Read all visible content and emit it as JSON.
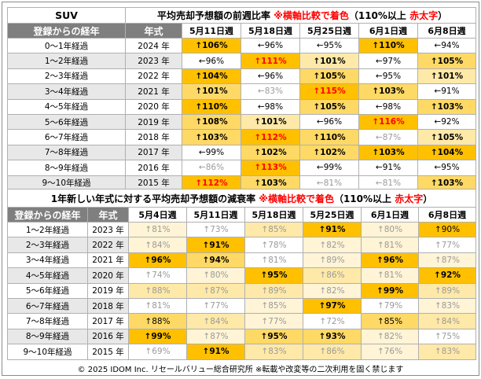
{
  "table1": {
    "label_suv": "SUV",
    "title_part1": "平均売却予想額の前週比率 ",
    "title_red": "※横軸比較で着色",
    "title_part2": "（110%以上 ",
    "title_red2": "赤太字",
    "title_part3": "）",
    "col_header_age": "登録からの経年",
    "col_header_year": "年式",
    "dates": [
      "5月11日週",
      "5月18日週",
      "5月25日週",
      "6月1日週",
      "6月8日週"
    ],
    "rows": [
      {
        "age": "0～1年経過",
        "year": "2024 年",
        "cells": [
          {
            "arrow": "↑",
            "text": "106%",
            "shade": 4,
            "red": false
          },
          {
            "arrow": "←",
            "text": "96%",
            "shade": 0,
            "red": false
          },
          {
            "arrow": "←",
            "text": "95%",
            "shade": 0,
            "red": false
          },
          {
            "arrow": "↑",
            "text": "110%",
            "shade": 4,
            "red": false
          },
          {
            "arrow": "←",
            "text": "94%",
            "shade": 0,
            "red": false
          }
        ]
      },
      {
        "age": "1～2年経過",
        "year": "2023 年",
        "cells": [
          {
            "arrow": "←",
            "text": "96%",
            "shade": 0,
            "red": false
          },
          {
            "arrow": "↑",
            "text": "111%",
            "shade": 4,
            "red": true
          },
          {
            "arrow": "↑",
            "text": "101%",
            "shade": 2,
            "red": false
          },
          {
            "arrow": "←",
            "text": "97%",
            "shade": 0,
            "red": false
          },
          {
            "arrow": "↑",
            "text": "105%",
            "shade": 3,
            "red": false
          }
        ]
      },
      {
        "age": "2～3年経過",
        "year": "2022 年",
        "cells": [
          {
            "arrow": "↑",
            "text": "104%",
            "shade": 4,
            "red": false
          },
          {
            "arrow": "←",
            "text": "96%",
            "shade": 0,
            "red": false
          },
          {
            "arrow": "↑",
            "text": "105%",
            "shade": 3,
            "red": false
          },
          {
            "arrow": "←",
            "text": "95%",
            "shade": 0,
            "red": false
          },
          {
            "arrow": "↑",
            "text": "101%",
            "shade": 2,
            "red": false
          }
        ]
      },
      {
        "age": "3～4年経過",
        "year": "2021 年",
        "cells": [
          {
            "arrow": "↑",
            "text": "101%",
            "shade": 3,
            "red": false
          },
          {
            "arrow": "←",
            "text": "83%",
            "shade": 0,
            "red": false
          },
          {
            "arrow": "↑",
            "text": "115%",
            "shade": 4,
            "red": true
          },
          {
            "arrow": "↑",
            "text": "103%",
            "shade": 3,
            "red": false
          },
          {
            "arrow": "←",
            "text": "91%",
            "shade": 0,
            "red": false
          }
        ]
      },
      {
        "age": "4～5年経過",
        "year": "2020 年",
        "cells": [
          {
            "arrow": "↑",
            "text": "110%",
            "shade": 4,
            "red": false
          },
          {
            "arrow": "←",
            "text": "98%",
            "shade": 0,
            "red": false
          },
          {
            "arrow": "↑",
            "text": "105%",
            "shade": 3,
            "red": false
          },
          {
            "arrow": "←",
            "text": "98%",
            "shade": 0,
            "red": false
          },
          {
            "arrow": "↑",
            "text": "103%",
            "shade": 3,
            "red": false
          }
        ]
      },
      {
        "age": "5～6年経過",
        "year": "2019 年",
        "cells": [
          {
            "arrow": "↑",
            "text": "108%",
            "shade": 3,
            "red": false
          },
          {
            "arrow": "↑",
            "text": "101%",
            "shade": 2,
            "red": false
          },
          {
            "arrow": "←",
            "text": "96%",
            "shade": 0,
            "red": false
          },
          {
            "arrow": "↑",
            "text": "116%",
            "shade": 4,
            "red": true
          },
          {
            "arrow": "←",
            "text": "92%",
            "shade": 0,
            "red": false
          }
        ]
      },
      {
        "age": "6～7年経過",
        "year": "2018 年",
        "cells": [
          {
            "arrow": "↑",
            "text": "103%",
            "shade": 3,
            "red": false
          },
          {
            "arrow": "↑",
            "text": "112%",
            "shade": 4,
            "red": true
          },
          {
            "arrow": "↑",
            "text": "110%",
            "shade": 3,
            "red": false
          },
          {
            "arrow": "←",
            "text": "87%",
            "shade": 0,
            "red": false
          },
          {
            "arrow": "↑",
            "text": "105%",
            "shade": 2,
            "red": false
          }
        ]
      },
      {
        "age": "7～8年経過",
        "year": "2017 年",
        "cells": [
          {
            "arrow": "←",
            "text": "99%",
            "shade": 0,
            "red": false
          },
          {
            "arrow": "↑",
            "text": "102%",
            "shade": 3,
            "red": false
          },
          {
            "arrow": "↑",
            "text": "102%",
            "shade": 3,
            "red": false
          },
          {
            "arrow": "↑",
            "text": "103%",
            "shade": 4,
            "red": false
          },
          {
            "arrow": "↑",
            "text": "104%",
            "shade": 4,
            "red": false
          }
        ]
      },
      {
        "age": "8～9年経過",
        "year": "2016 年",
        "cells": [
          {
            "arrow": "←",
            "text": "86%",
            "shade": 0,
            "red": false
          },
          {
            "arrow": "↑",
            "text": "113%",
            "shade": 4,
            "red": true
          },
          {
            "arrow": "←",
            "text": "99%",
            "shade": 0,
            "red": false
          },
          {
            "arrow": "←",
            "text": "91%",
            "shade": 0,
            "red": false
          },
          {
            "arrow": "←",
            "text": "95%",
            "shade": 0,
            "red": false
          }
        ]
      },
      {
        "age": "9～10年経過",
        "year": "2015 年",
        "cells": [
          {
            "arrow": "↑",
            "text": "112%",
            "shade": 4,
            "red": true
          },
          {
            "arrow": "↑",
            "text": "103%",
            "shade": 3,
            "red": false
          },
          {
            "arrow": "←",
            "text": "81%",
            "shade": 0,
            "red": false
          },
          {
            "arrow": "←",
            "text": "81%",
            "shade": 0,
            "red": false
          },
          {
            "arrow": "↑",
            "text": "103%",
            "shade": 3,
            "red": false
          }
        ]
      }
    ]
  },
  "table2": {
    "title_part1": "1年新しい年式に対する平均売却予想額の減衰率 ",
    "title_red": "※横軸比較で着色",
    "title_part2": "（110%以上 ",
    "title_red2": "赤太字",
    "title_part3": "）",
    "col_header_age": "登録からの経年",
    "col_header_year": "年式",
    "dates": [
      "5月4日週",
      "5月11日週",
      "5月18日週",
      "5月25日週",
      "6月1日週",
      "6月8日週"
    ],
    "rows": [
      {
        "age": "1～2年経過",
        "year": "2023 年",
        "cells": [
          {
            "arrow": "↑",
            "text": "81%",
            "shade": 1,
            "bold": false
          },
          {
            "arrow": "↑",
            "text": "73%",
            "shade": 0,
            "bold": false
          },
          {
            "arrow": "↑",
            "text": "85%",
            "shade": 2,
            "bold": false
          },
          {
            "arrow": "↑",
            "text": "91%",
            "shade": 4,
            "bold": true
          },
          {
            "arrow": "↑",
            "text": "80%",
            "shade": 1,
            "bold": false
          },
          {
            "arrow": "↑",
            "text": "90%",
            "shade": 4,
            "bold": false
          }
        ]
      },
      {
        "age": "2～3年経過",
        "year": "2022 年",
        "cells": [
          {
            "arrow": "↑",
            "text": "84%",
            "shade": 1,
            "bold": false
          },
          {
            "arrow": "↑",
            "text": "91%",
            "shade": 4,
            "bold": true
          },
          {
            "arrow": "↑",
            "text": "78%",
            "shade": 0,
            "bold": false
          },
          {
            "arrow": "↑",
            "text": "82%",
            "shade": 1,
            "bold": false
          },
          {
            "arrow": "↑",
            "text": "81%",
            "shade": 1,
            "bold": false
          },
          {
            "arrow": "↑",
            "text": "77%",
            "shade": 0,
            "bold": false
          }
        ]
      },
      {
        "age": "3～4年経過",
        "year": "2021 年",
        "cells": [
          {
            "arrow": "↑",
            "text": "96%",
            "shade": 4,
            "bold": true
          },
          {
            "arrow": "↑",
            "text": "94%",
            "shade": 3,
            "bold": true
          },
          {
            "arrow": "↑",
            "text": "81%",
            "shade": 0,
            "bold": false
          },
          {
            "arrow": "↑",
            "text": "89%",
            "shade": 1,
            "bold": false
          },
          {
            "arrow": "↑",
            "text": "96%",
            "shade": 4,
            "bold": true
          },
          {
            "arrow": "↑",
            "text": "87%",
            "shade": 1,
            "bold": false
          }
        ]
      },
      {
        "age": "4～5年経過",
        "year": "2020 年",
        "cells": [
          {
            "arrow": "↑",
            "text": "74%",
            "shade": 0,
            "bold": false
          },
          {
            "arrow": "↑",
            "text": "80%",
            "shade": 1,
            "bold": false
          },
          {
            "arrow": "↑",
            "text": "95%",
            "shade": 4,
            "bold": true
          },
          {
            "arrow": "↑",
            "text": "86%",
            "shade": 2,
            "bold": false
          },
          {
            "arrow": "↑",
            "text": "81%",
            "shade": 1,
            "bold": false
          },
          {
            "arrow": "↑",
            "text": "92%",
            "shade": 4,
            "bold": true
          }
        ]
      },
      {
        "age": "5～6年経過",
        "year": "2019 年",
        "cells": [
          {
            "arrow": "↑",
            "text": "88%",
            "shade": 2,
            "bold": false
          },
          {
            "arrow": "↑",
            "text": "87%",
            "shade": 2,
            "bold": false
          },
          {
            "arrow": "↑",
            "text": "89%",
            "shade": 2,
            "bold": false
          },
          {
            "arrow": "↑",
            "text": "82%",
            "shade": 1,
            "bold": false
          },
          {
            "arrow": "↑",
            "text": "99%",
            "shade": 4,
            "bold": true
          },
          {
            "arrow": "↑",
            "text": "89%",
            "shade": 2,
            "bold": false
          }
        ]
      },
      {
        "age": "6～7年経過",
        "year": "2018 年",
        "cells": [
          {
            "arrow": "↑",
            "text": "81%",
            "shade": 0,
            "bold": false
          },
          {
            "arrow": "↑",
            "text": "77%",
            "shade": 0,
            "bold": false
          },
          {
            "arrow": "↑",
            "text": "85%",
            "shade": 1,
            "bold": false
          },
          {
            "arrow": "↑",
            "text": "97%",
            "shade": 4,
            "bold": true
          },
          {
            "arrow": "↑",
            "text": "79%",
            "shade": 0,
            "bold": false
          },
          {
            "arrow": "↑",
            "text": "83%",
            "shade": 1,
            "bold": false
          }
        ]
      },
      {
        "age": "7～8年経過",
        "year": "2017 年",
        "cells": [
          {
            "arrow": "↑",
            "text": "88%",
            "shade": 3,
            "bold": false
          },
          {
            "arrow": "↑",
            "text": "84%",
            "shade": 2,
            "bold": false
          },
          {
            "arrow": "↑",
            "text": "77%",
            "shade": 1,
            "bold": false
          },
          {
            "arrow": "↑",
            "text": "72%",
            "shade": 0,
            "bold": false
          },
          {
            "arrow": "↑",
            "text": "85%",
            "shade": 3,
            "bold": false
          },
          {
            "arrow": "↑",
            "text": "84%",
            "shade": 2,
            "bold": false
          }
        ]
      },
      {
        "age": "8～9年経過",
        "year": "2016 年",
        "cells": [
          {
            "arrow": "↑",
            "text": "99%",
            "shade": 4,
            "bold": true
          },
          {
            "arrow": "↑",
            "text": "87%",
            "shade": 1,
            "bold": false
          },
          {
            "arrow": "↑",
            "text": "95%",
            "shade": 3,
            "bold": true
          },
          {
            "arrow": "↑",
            "text": "93%",
            "shade": 3,
            "bold": true
          },
          {
            "arrow": "↑",
            "text": "82%",
            "shade": 1,
            "bold": false
          },
          {
            "arrow": "↑",
            "text": "75%",
            "shade": 0,
            "bold": false
          }
        ]
      },
      {
        "age": "9～10年経過",
        "year": "2015 年",
        "cells": [
          {
            "arrow": "↑",
            "text": "69%",
            "shade": 0,
            "bold": false
          },
          {
            "arrow": "↑",
            "text": "91%",
            "shade": 4,
            "bold": true
          },
          {
            "arrow": "↑",
            "text": "83%",
            "shade": 2,
            "bold": false
          },
          {
            "arrow": "↑",
            "text": "86%",
            "shade": 2,
            "bold": false
          },
          {
            "arrow": "↑",
            "text": "76%",
            "shade": 1,
            "bold": false
          },
          {
            "arrow": "↑",
            "text": "83%",
            "shade": 2,
            "bold": false
          }
        ]
      }
    ]
  },
  "footer": "© 2025 IDOM Inc. リセールバリュー総合研究所 ※転載や改変等の二次利用を固く禁じます",
  "colors": {
    "shade0": "#ffffff",
    "shade1": "#fff4d6",
    "shade2": "#ffe9a8",
    "shade3": "#ffd966",
    "shade4": "#ffc000",
    "header_gray": "#7f7f7f",
    "red": "#ff0000"
  },
  "chart_data": {
    "type": "table",
    "tables": [
      {
        "title": "平均売却予想額の前週比率 ※横軸比較で着色（110%以上 赤太字）",
        "columns": [
          "登録からの経年",
          "年式",
          "5月11日週",
          "5月18日週",
          "5月25日週",
          "6月1日週",
          "6月8日週"
        ],
        "rows": [
          [
            "0～1年経過",
            "2024 年",
            106,
            96,
            95,
            110,
            94
          ],
          [
            "1～2年経過",
            "2023 年",
            96,
            111,
            101,
            97,
            105
          ],
          [
            "2～3年経過",
            "2022 年",
            104,
            96,
            105,
            95,
            101
          ],
          [
            "3～4年経過",
            "2021 年",
            101,
            83,
            115,
            103,
            91
          ],
          [
            "4～5年経過",
            "2020 年",
            110,
            98,
            105,
            98,
            103
          ],
          [
            "5～6年経過",
            "2019 年",
            108,
            101,
            96,
            116,
            92
          ],
          [
            "6～7年経過",
            "2018 年",
            103,
            112,
            110,
            87,
            105
          ],
          [
            "7～8年経過",
            "2017 年",
            99,
            102,
            102,
            103,
            104
          ],
          [
            "8～9年経過",
            "2016 年",
            86,
            113,
            99,
            91,
            95
          ],
          [
            "9～10年経過",
            "2015 年",
            112,
            103,
            81,
            81,
            103
          ]
        ],
        "unit": "%"
      },
      {
        "title": "1年新しい年式に対する平均売却予想額の減衰率 ※横軸比較で着色（110%以上 赤太字）",
        "columns": [
          "登録からの経年",
          "年式",
          "5月4日週",
          "5月11日週",
          "5月18日週",
          "5月25日週",
          "6月1日週",
          "6月8日週"
        ],
        "rows": [
          [
            "1～2年経過",
            "2023 年",
            81,
            73,
            85,
            91,
            80,
            90
          ],
          [
            "2～3年経過",
            "2022 年",
            84,
            91,
            78,
            82,
            81,
            77
          ],
          [
            "3～4年経過",
            "2021 年",
            96,
            94,
            81,
            89,
            96,
            87
          ],
          [
            "4～5年経過",
            "2020 年",
            74,
            80,
            95,
            86,
            81,
            92
          ],
          [
            "5～6年経過",
            "2019 年",
            88,
            87,
            89,
            82,
            99,
            89
          ],
          [
            "6～7年経過",
            "2018 年",
            81,
            77,
            85,
            97,
            79,
            83
          ],
          [
            "7～8年経過",
            "2017 年",
            88,
            84,
            77,
            72,
            85,
            84
          ],
          [
            "8～9年経過",
            "2016 年",
            99,
            87,
            95,
            93,
            82,
            75
          ],
          [
            "9～10年経過",
            "2015 年",
            69,
            91,
            83,
            86,
            76,
            83
          ]
        ],
        "unit": "%"
      }
    ]
  }
}
